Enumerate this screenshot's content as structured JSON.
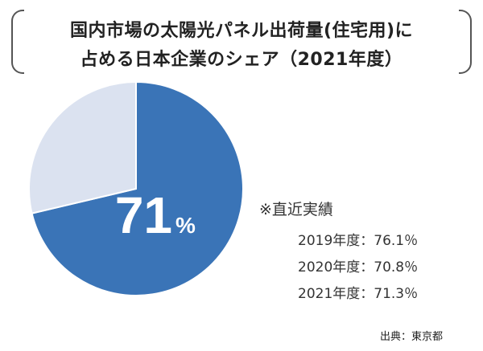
{
  "title": {
    "line1": "国内市場の太陽光パネル出荷量(住宅用)に",
    "line2": "占める日本企業のシェア（2021年度）"
  },
  "chart_data": {
    "type": "pie",
    "slices": [
      {
        "value": 71.3,
        "color": "#3a74b7"
      },
      {
        "value": 28.7,
        "color": "#dbe2f0"
      }
    ],
    "center_label": {
      "number": "71",
      "unit": "%"
    }
  },
  "notes": {
    "heading": "※直近実績",
    "rows": [
      {
        "text": "2019年度：76.1％"
      },
      {
        "text": "2020年度：70.8％"
      },
      {
        "text": "2021年度：71.3％"
      }
    ]
  },
  "source": "出典：東京都"
}
